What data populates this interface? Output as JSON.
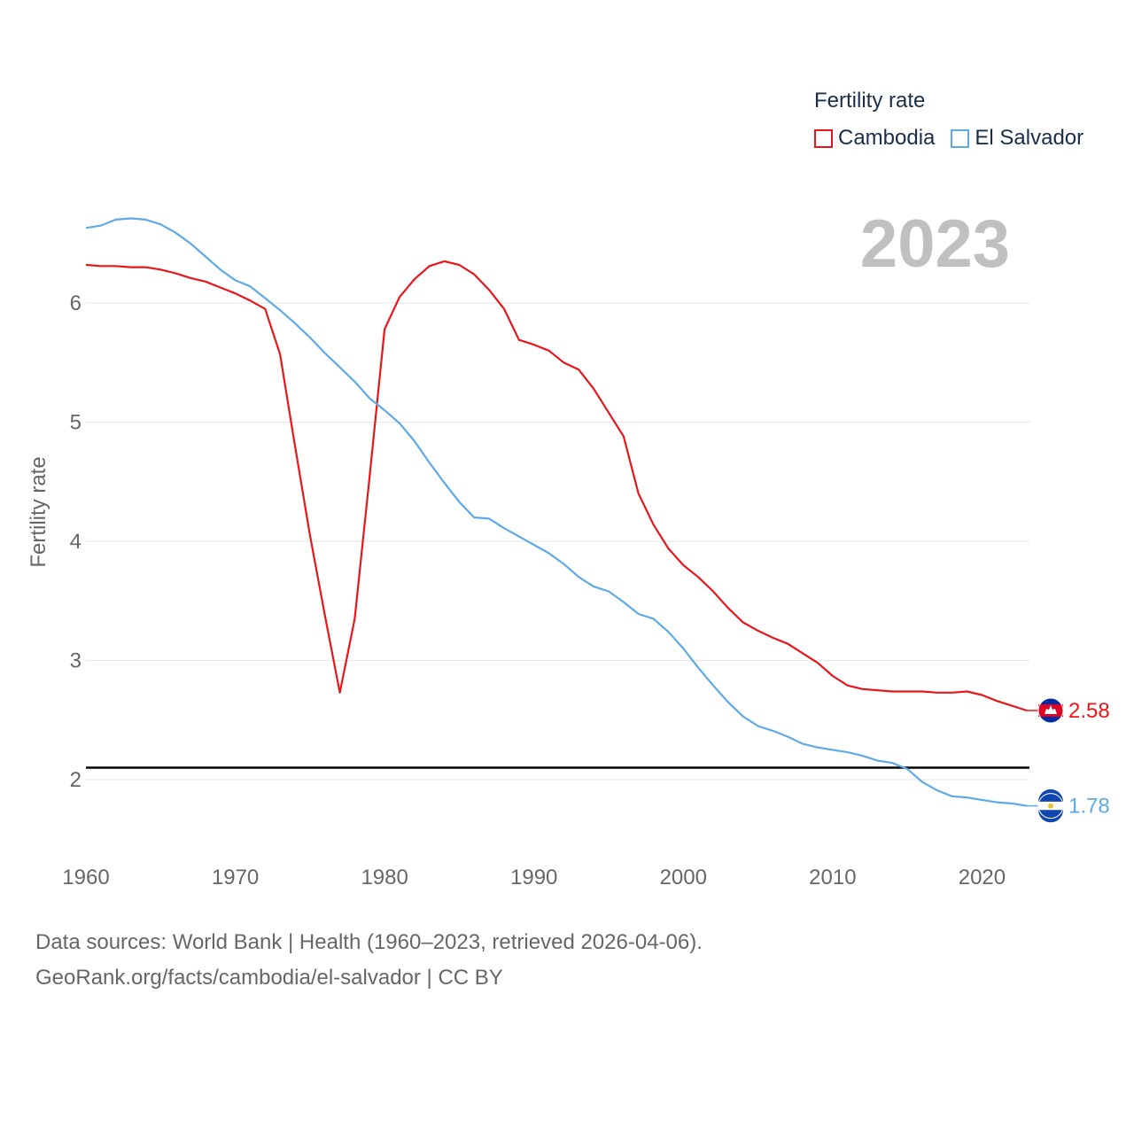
{
  "legend": {
    "title": "Fertility rate",
    "items": [
      {
        "label": "Cambodia",
        "color": "#e8161b"
      },
      {
        "label": "El Salvador",
        "color": "#5ea9e8"
      }
    ]
  },
  "year_label": "2023",
  "footer": {
    "line1": "Data sources: World Bank | Health (1960–2023, retrieved 2026-04-06).",
    "line2": "GeoRank.org/facts/cambodia/el-salvador | CC BY"
  },
  "chart_data": {
    "type": "line",
    "title": "",
    "xlabel": "",
    "ylabel": "Fertility rate",
    "xlim": [
      1960,
      2023
    ],
    "ylim": [
      1.5,
      7
    ],
    "x_ticks": [
      "1960",
      "1970",
      "1980",
      "1990",
      "2000",
      "2010",
      "2020"
    ],
    "y_ticks": [
      "2",
      "3",
      "4",
      "5",
      "6"
    ],
    "grid": true,
    "reference_line": {
      "y": 2.1,
      "color": "#000000"
    },
    "series": [
      {
        "name": "Cambodia",
        "color": "#e8161b",
        "end_label": "2.58",
        "x": [
          1960,
          1961,
          1962,
          1963,
          1964,
          1965,
          1966,
          1967,
          1968,
          1969,
          1970,
          1971,
          1972,
          1973,
          1974,
          1975,
          1976,
          1977,
          1978,
          1979,
          1980,
          1981,
          1982,
          1983,
          1984,
          1985,
          1986,
          1987,
          1988,
          1989,
          1990,
          1991,
          1992,
          1993,
          1994,
          1995,
          1996,
          1997,
          1998,
          1999,
          2000,
          2001,
          2002,
          2003,
          2004,
          2005,
          2006,
          2007,
          2008,
          2009,
          2010,
          2011,
          2012,
          2013,
          2014,
          2015,
          2016,
          2017,
          2018,
          2019,
          2020,
          2021,
          2022,
          2023
        ],
        "values": [
          6.32,
          6.31,
          6.31,
          6.3,
          6.3,
          6.28,
          6.25,
          6.21,
          6.18,
          6.13,
          6.08,
          6.02,
          5.95,
          5.57,
          4.8,
          4.05,
          3.38,
          2.73,
          3.35,
          4.55,
          5.78,
          6.05,
          6.2,
          6.31,
          6.35,
          6.32,
          6.24,
          6.11,
          5.95,
          5.69,
          5.65,
          5.6,
          5.5,
          5.44,
          5.28,
          5.08,
          4.88,
          4.4,
          4.14,
          3.94,
          3.8,
          3.7,
          3.58,
          3.44,
          3.32,
          3.25,
          3.19,
          3.14,
          3.06,
          2.98,
          2.87,
          2.79,
          2.76,
          2.75,
          2.74,
          2.74,
          2.74,
          2.73,
          2.73,
          2.74,
          2.71,
          2.66,
          2.62,
          2.58
        ]
      },
      {
        "name": "El Salvador",
        "color": "#5ea9e8",
        "end_label": "1.78",
        "x": [
          1960,
          1961,
          1962,
          1963,
          1964,
          1965,
          1966,
          1967,
          1968,
          1969,
          1970,
          1971,
          1972,
          1973,
          1974,
          1975,
          1976,
          1977,
          1978,
          1979,
          1980,
          1981,
          1982,
          1983,
          1984,
          1985,
          1986,
          1987,
          1988,
          1989,
          1990,
          1991,
          1992,
          1993,
          1994,
          1995,
          1996,
          1997,
          1998,
          1999,
          2000,
          2001,
          2002,
          2003,
          2004,
          2005,
          2006,
          2007,
          2008,
          2009,
          2010,
          2011,
          2012,
          2013,
          2014,
          2015,
          2016,
          2017,
          2018,
          2019,
          2020,
          2021,
          2022,
          2023
        ],
        "values": [
          6.63,
          6.65,
          6.7,
          6.71,
          6.7,
          6.66,
          6.59,
          6.5,
          6.39,
          6.28,
          6.19,
          6.14,
          6.04,
          5.94,
          5.83,
          5.71,
          5.58,
          5.46,
          5.34,
          5.2,
          5.1,
          4.99,
          4.84,
          4.66,
          4.49,
          4.33,
          4.2,
          4.19,
          4.11,
          4.04,
          3.97,
          3.9,
          3.81,
          3.7,
          3.62,
          3.58,
          3.49,
          3.39,
          3.35,
          3.24,
          3.1,
          2.94,
          2.79,
          2.65,
          2.53,
          2.45,
          2.41,
          2.36,
          2.3,
          2.27,
          2.25,
          2.23,
          2.2,
          2.16,
          2.14,
          2.09,
          1.98,
          1.91,
          1.86,
          1.85,
          1.83,
          1.81,
          1.8,
          1.78
        ]
      }
    ]
  }
}
